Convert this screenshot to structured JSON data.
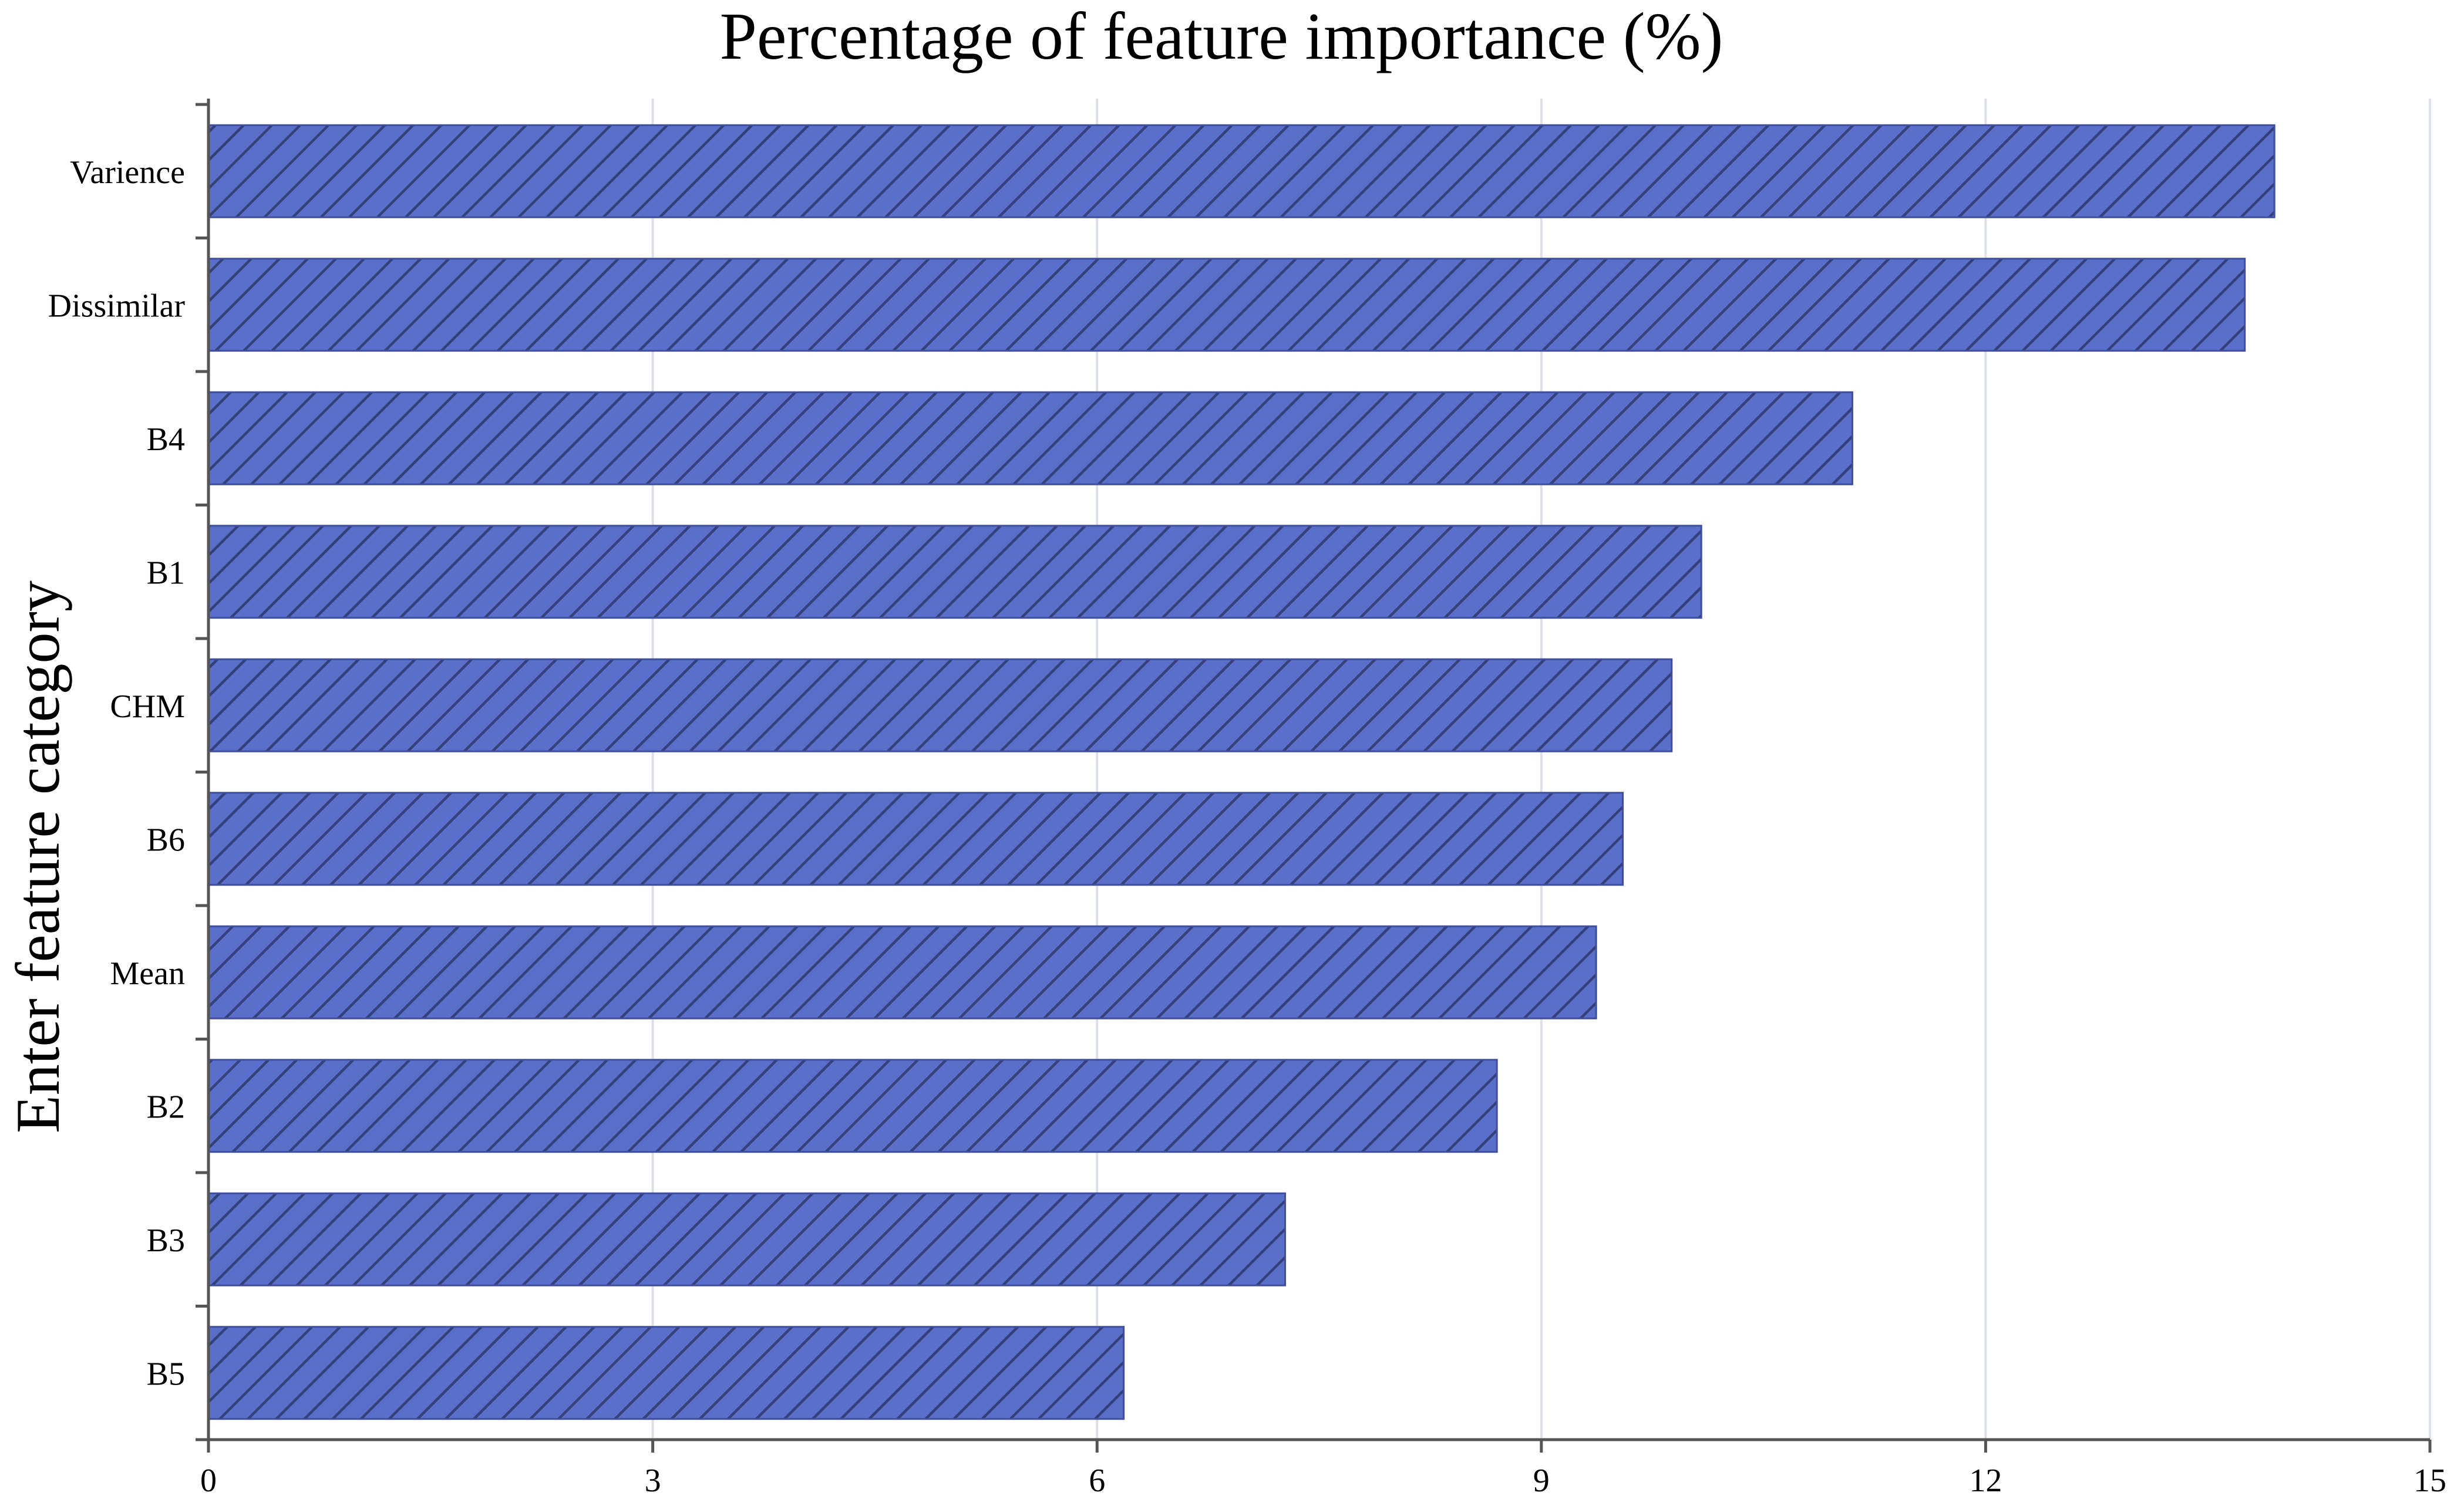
{
  "chart_data": {
    "type": "bar",
    "orientation": "horizontal",
    "title": "Percentage of feature importance (%)",
    "xlabel": "",
    "ylabel": "Enter  feature category",
    "categories": [
      "Varience",
      "Dissimilar",
      "B4",
      "B1",
      "CHM",
      "B6",
      "Mean",
      "B2",
      "B3",
      "B5"
    ],
    "values": [
      13.95,
      13.75,
      11.1,
      10.08,
      9.88,
      9.55,
      9.37,
      8.7,
      7.27,
      6.18
    ],
    "xlim": [
      0,
      15
    ],
    "xticks": [
      "0",
      "3",
      "6",
      "9",
      "12",
      "15"
    ],
    "grid": true,
    "colors": {
      "bar_fill": "#5a6fca",
      "bar_stroke": "#3f4f9e",
      "hatch": "#34407a",
      "grid": "#dde0e8",
      "axis": "#555555"
    }
  }
}
